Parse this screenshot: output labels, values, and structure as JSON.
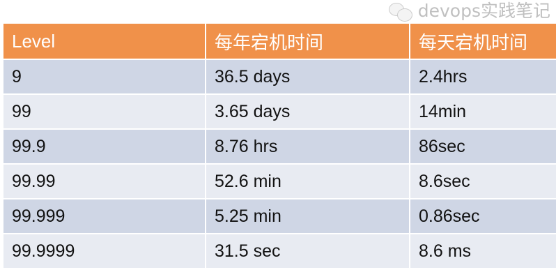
{
  "table": {
    "headers": [
      "Level",
      "每年宕机时间",
      "每天宕机时间"
    ],
    "rows": [
      [
        "9",
        "36.5 days",
        "2.4hrs"
      ],
      [
        "99",
        "3.65 days",
        "14min"
      ],
      [
        "99.9",
        "8.76 hrs",
        "86sec"
      ],
      [
        "99.99",
        "52.6 min",
        "8.6sec"
      ],
      [
        "99.999",
        "5.25 min",
        "0.86sec"
      ],
      [
        "99.9999",
        "31.5 sec",
        "8.6 ms"
      ]
    ]
  },
  "watermark": {
    "text": "devops实践笔记",
    "icon": "wechat-icon"
  },
  "colors": {
    "header": "#f0914a",
    "row_dark": "#cfd6e5",
    "row_light": "#e8ebf2"
  }
}
